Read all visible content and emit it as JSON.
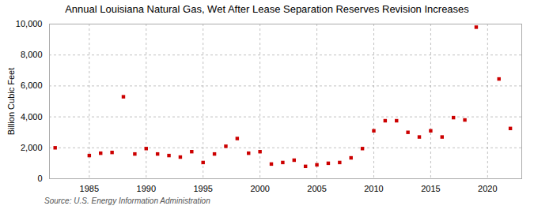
{
  "chart_data": {
    "type": "scatter",
    "title": "Annual Louisiana Natural Gas, Wet After Lease Separation Reserves Revision Increases",
    "ylabel": "Billion Cubic Feet",
    "source": "Source: U.S. Energy Information Administration",
    "x": [
      1982,
      1985,
      1986,
      1987,
      1988,
      1989,
      1990,
      1991,
      1992,
      1993,
      1994,
      1995,
      1996,
      1997,
      1998,
      1999,
      2000,
      2001,
      2002,
      2003,
      2004,
      2005,
      2006,
      2007,
      2008,
      2009,
      2010,
      2011,
      2012,
      2013,
      2014,
      2015,
      2016,
      2017,
      2018,
      2019,
      2021,
      2022
    ],
    "values": [
      2000,
      1500,
      1650,
      1700,
      5300,
      1600,
      1950,
      1600,
      1500,
      1400,
      1750,
      1050,
      1600,
      2100,
      2600,
      1650,
      1750,
      950,
      1050,
      1200,
      800,
      900,
      1000,
      1050,
      1350,
      1950,
      3100,
      3750,
      3750,
      3000,
      2700,
      3100,
      2700,
      3950,
      3800,
      9800,
      6450,
      3250
    ],
    "color": "#cc0000",
    "marker": "square",
    "xlim": [
      1981.5,
      2023
    ],
    "xticks": [
      1985,
      1990,
      1995,
      2000,
      2005,
      2010,
      2015,
      2020
    ],
    "ylim": [
      0,
      10000
    ],
    "yticks": [
      0,
      {
        "value": 2000,
        "label": "2,000"
      },
      {
        "value": 4000,
        "label": "4,000"
      },
      {
        "value": 6000,
        "label": "6,000"
      },
      {
        "value": 8000,
        "label": "8,000"
      },
      {
        "value": 10000,
        "label": "10,000"
      }
    ],
    "grid": true
  }
}
